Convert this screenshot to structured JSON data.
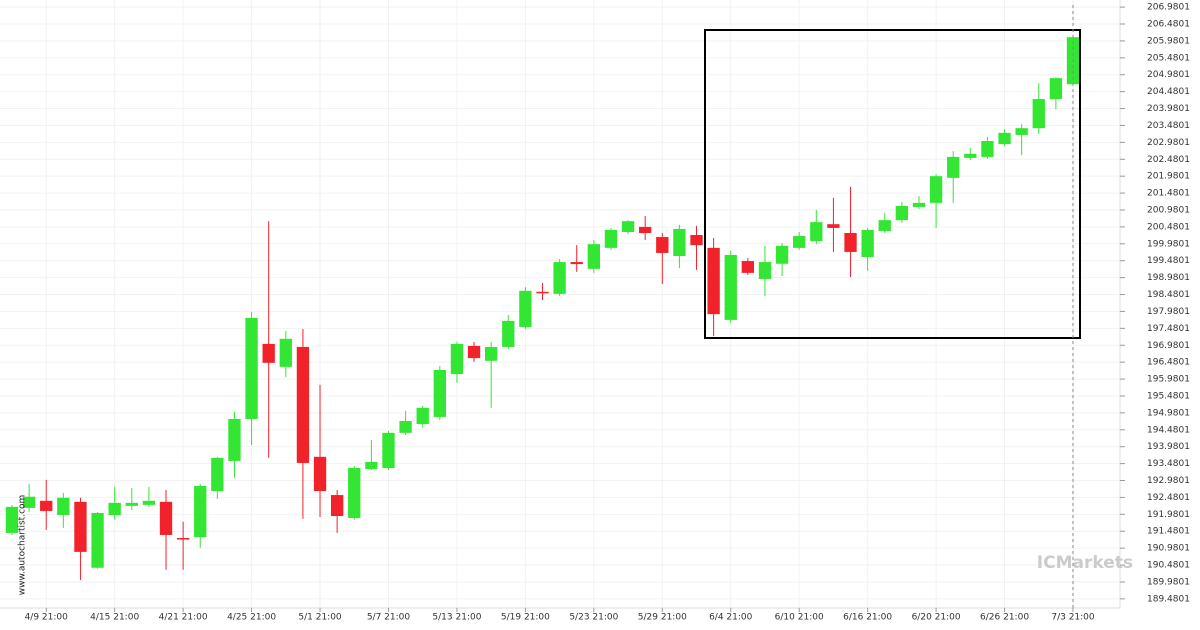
{
  "chart_data": {
    "type": "candlestick",
    "source": "www.autochartist.com",
    "logo": "ICMarkets",
    "up_color": "#33e633",
    "down_color": "#f2222a",
    "grid": true,
    "categories": [
      null,
      null,
      "4/9 21:00",
      null,
      null,
      null,
      "4/15 21:00",
      null,
      null,
      null,
      "4/21 21:00",
      null,
      null,
      null,
      "4/25 21:00",
      null,
      null,
      null,
      "5/1 21:00",
      null,
      null,
      null,
      "5/7 21:00",
      null,
      null,
      null,
      "5/13 21:00",
      null,
      null,
      null,
      "5/19 21:00",
      null,
      null,
      null,
      "5/23 21:00",
      null,
      null,
      null,
      "5/29 21:00",
      null,
      null,
      null,
      "6/4 21:00",
      null,
      null,
      null,
      "6/10 21:00",
      null,
      null,
      null,
      "6/16 21:00",
      null,
      null,
      null,
      "6/20 21:00",
      null,
      null,
      null,
      "6/26 21:00",
      null,
      null,
      null,
      "7/3 21:00"
    ],
    "open": [
      191.43,
      192.17,
      192.38,
      191.96,
      192.35,
      190.4,
      191.96,
      192.23,
      192.26,
      192.35,
      191.28,
      191.31,
      192.67,
      193.56,
      194.8,
      197.02,
      196.34,
      196.93,
      193.68,
      192.55,
      191.87,
      193.32,
      193.35,
      194.39,
      194.65,
      194.86,
      196.13,
      196.96,
      196.52,
      196.93,
      197.52,
      198.56,
      198.5,
      199.44,
      199.24,
      199.86,
      200.33,
      200.48,
      200.18,
      199.62,
      200.24,
      199.86,
      197.73,
      199.47,
      198.94,
      199.39,
      199.86,
      200.06,
      200.56,
      200.3,
      199.59,
      200.36,
      200.68,
      201.07,
      201.19,
      201.93,
      202.52,
      202.55,
      202.93,
      203.2,
      203.4,
      204.26,
      204.7
    ],
    "high": [
      192.26,
      192.88,
      193.0,
      192.61,
      192.47,
      192.05,
      192.79,
      192.76,
      192.79,
      192.7,
      191.76,
      192.88,
      193.68,
      195.01,
      197.96,
      200.65,
      197.4,
      197.46,
      195.81,
      192.7,
      193.41,
      194.18,
      194.45,
      195.04,
      195.19,
      196.37,
      197.08,
      197.08,
      197.08,
      197.87,
      198.7,
      198.82,
      199.53,
      199.94,
      200.09,
      200.45,
      200.68,
      200.8,
      200.3,
      200.54,
      200.51,
      200.15,
      199.77,
      199.56,
      199.92,
      200.0,
      200.33,
      200.98,
      201.34,
      201.66,
      200.45,
      200.89,
      201.22,
      201.39,
      202.04,
      202.72,
      202.81,
      203.14,
      203.37,
      203.52,
      204.73,
      204.9,
      206.15
    ],
    "low": [
      191.37,
      192.05,
      191.52,
      191.58,
      190.04,
      190.37,
      191.82,
      192.11,
      192.2,
      190.34,
      190.34,
      190.99,
      192.44,
      193.06,
      194.03,
      193.65,
      196.04,
      191.85,
      191.9,
      191.43,
      191.82,
      193.29,
      193.29,
      194.33,
      194.54,
      194.77,
      195.87,
      196.49,
      195.13,
      196.87,
      197.46,
      198.32,
      198.44,
      199.15,
      199.12,
      199.8,
      200.27,
      200.09,
      198.79,
      199.26,
      199.21,
      197.25,
      197.64,
      199.06,
      198.44,
      199.03,
      199.8,
      199.97,
      199.74,
      199.0,
      199.18,
      200.3,
      200.6,
      201.01,
      200.45,
      201.19,
      202.46,
      202.49,
      202.87,
      202.6,
      203.23,
      203.96,
      204.7
    ],
    "close": [
      192.2,
      192.5,
      192.08,
      192.47,
      190.87,
      192.02,
      192.32,
      192.32,
      192.38,
      191.37,
      191.25,
      192.82,
      193.65,
      194.8,
      197.79,
      196.46,
      197.17,
      193.5,
      192.67,
      191.93,
      193.35,
      193.53,
      194.39,
      194.74,
      195.13,
      196.25,
      197.02,
      196.6,
      196.93,
      197.7,
      198.59,
      198.53,
      199.44,
      199.38,
      199.97,
      200.39,
      200.65,
      200.3,
      199.71,
      200.42,
      199.94,
      197.9,
      199.65,
      199.12,
      199.44,
      199.92,
      200.21,
      200.62,
      200.45,
      199.74,
      200.39,
      200.68,
      201.1,
      201.19,
      201.98,
      202.55,
      202.64,
      203.02,
      203.26,
      203.4,
      204.26,
      204.88,
      206.09
    ],
    "ylim": [
      189.21,
      207.19
    ],
    "yticks": [
      189.4801,
      189.9801,
      190.4801,
      190.9801,
      191.4801,
      191.9801,
      192.4801,
      192.9801,
      193.4801,
      193.9801,
      194.4801,
      194.9801,
      195.4801,
      195.9801,
      196.4801,
      196.9801,
      197.4801,
      197.9801,
      198.4801,
      198.9801,
      199.4801,
      199.9801,
      200.4801,
      200.9801,
      201.4801,
      201.9801,
      202.4801,
      202.9801,
      203.4801,
      203.9801,
      204.4801,
      204.9801,
      205.4801,
      205.9801,
      206.4801,
      206.9801
    ]
  }
}
